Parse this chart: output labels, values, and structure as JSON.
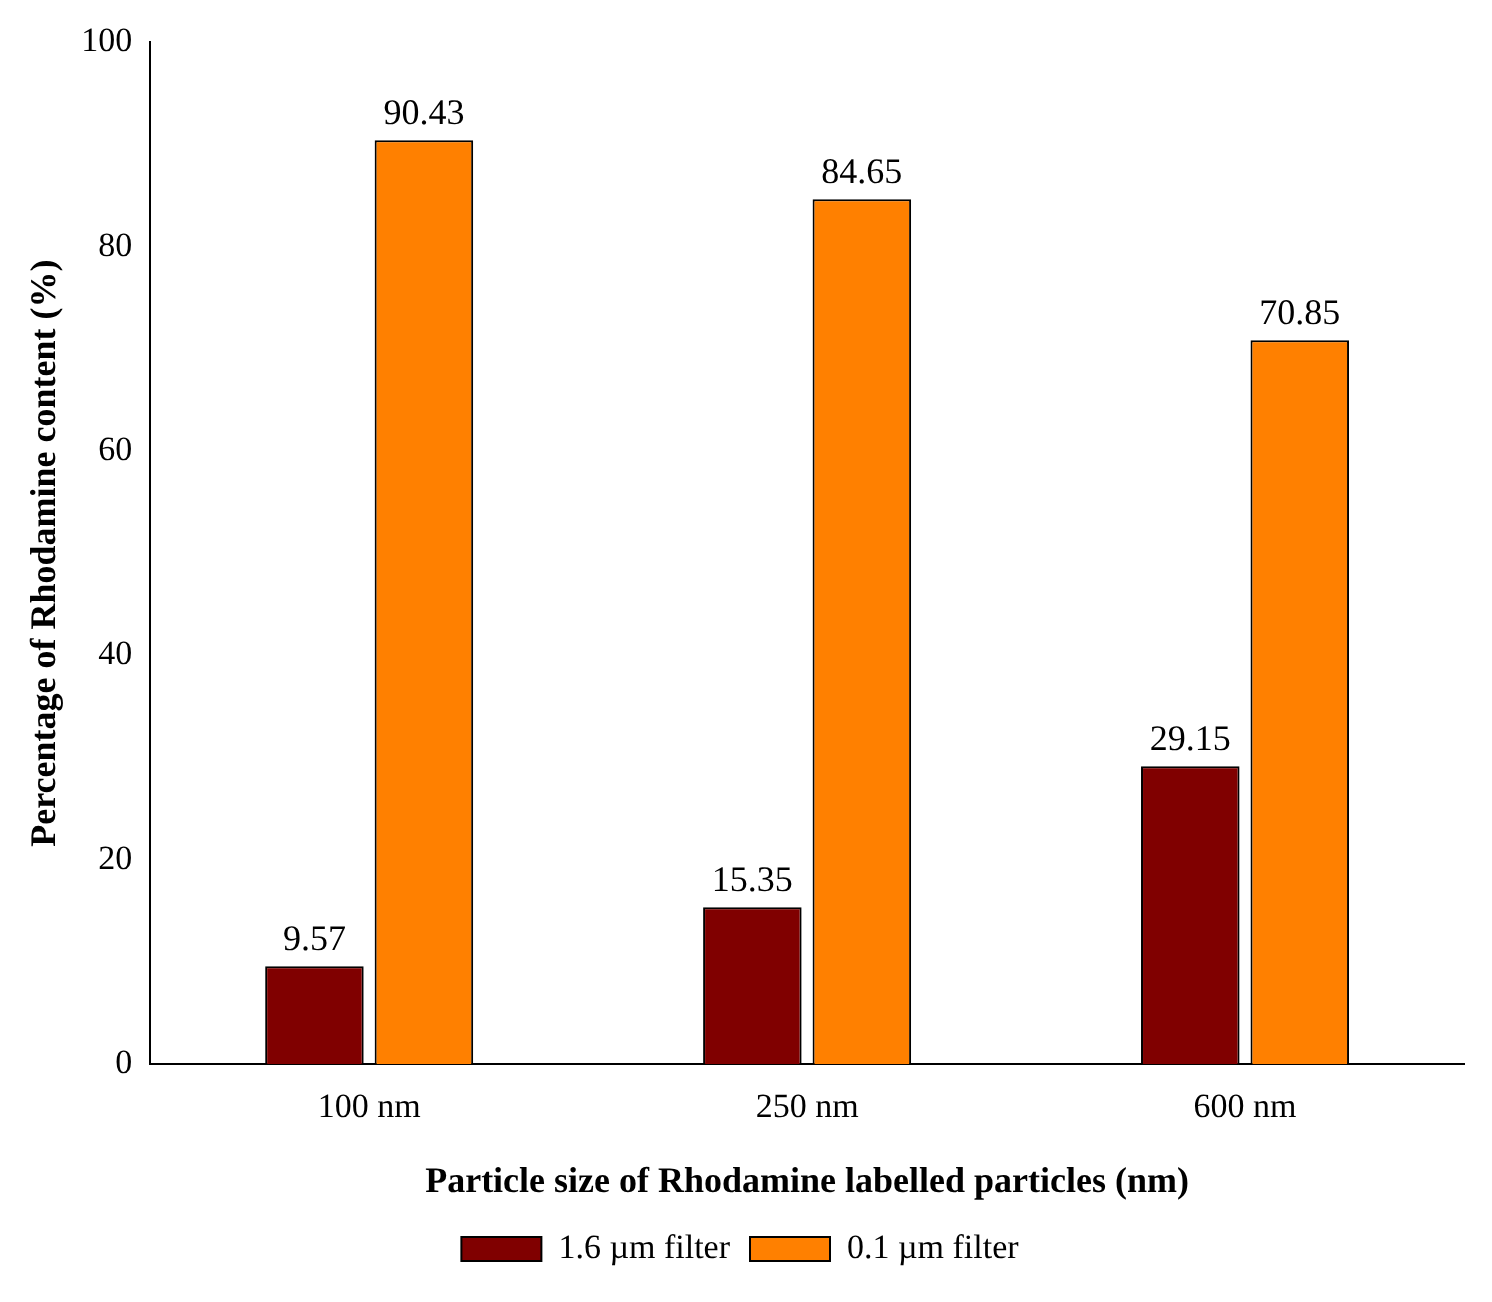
{
  "chart_data": {
    "type": "bar",
    "xlabel": "Particle size of Rhodamine labelled particles (nm)",
    "ylabel": "Percentage of Rhodamine content (%)",
    "categories": [
      "100 nm",
      "250 nm",
      "600 nm"
    ],
    "series": [
      {
        "name": "1.6 µm filter",
        "color": "#800000",
        "values": [
          9.57,
          15.35,
          29.15
        ]
      },
      {
        "name": "0.1 µm filter",
        "color": "#ff8000",
        "values": [
          90.43,
          84.65,
          70.85
        ]
      }
    ],
    "ylim": [
      0,
      100
    ],
    "yticks": [
      0,
      20,
      40,
      60,
      80,
      100
    ],
    "grid": false,
    "legend": "bottom",
    "data_labels": true
  }
}
